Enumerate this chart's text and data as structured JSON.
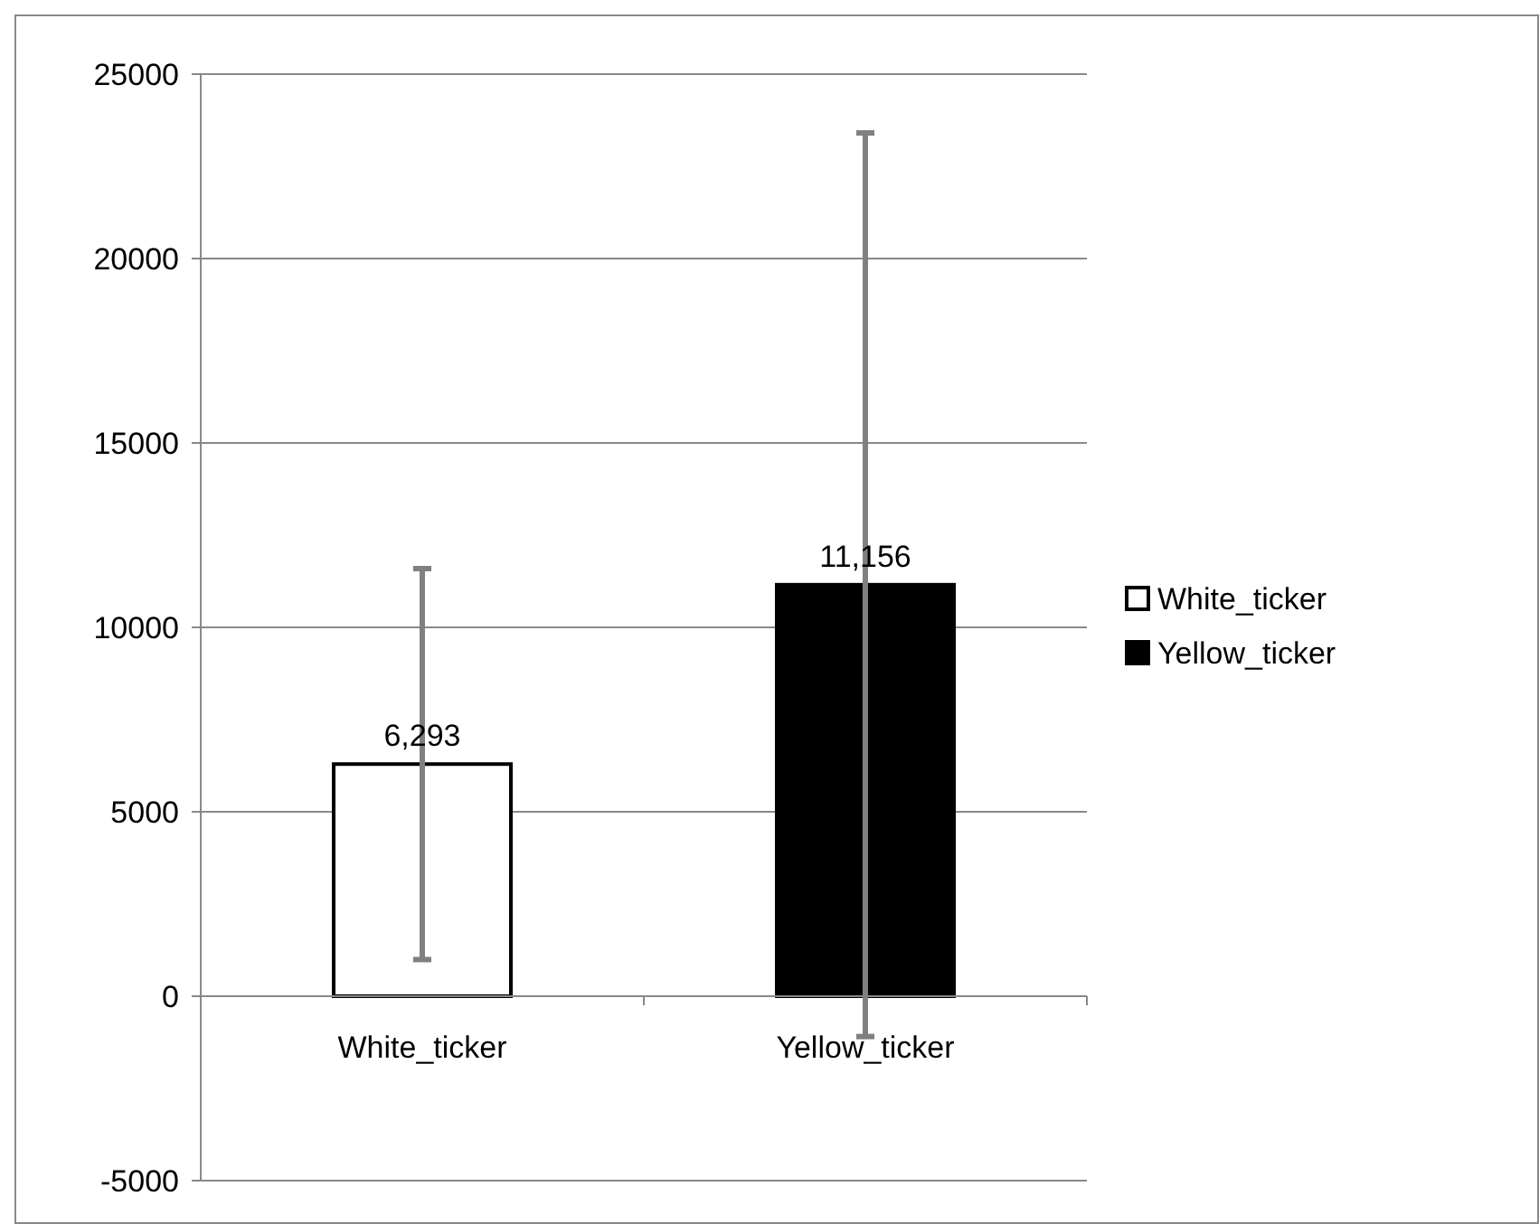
{
  "chart_data": {
    "type": "bar",
    "categories": [
      "White_ticker",
      "Yellow_ticker"
    ],
    "series": [
      {
        "name": "White_ticker",
        "color": "#ffffff",
        "values": [
          6293,
          null
        ],
        "errors": [
          5300,
          null
        ],
        "value_labels": [
          "6,293",
          null
        ]
      },
      {
        "name": "Yellow_ticker",
        "color": "#000000",
        "values": [
          null,
          11156
        ],
        "errors": [
          null,
          12250
        ],
        "value_labels": [
          null,
          "11,156"
        ]
      }
    ],
    "ylim": [
      -5000,
      25000
    ],
    "yticks": [
      -5000,
      0,
      5000,
      10000,
      15000,
      20000,
      25000
    ],
    "grid": "y",
    "legend": "right"
  }
}
